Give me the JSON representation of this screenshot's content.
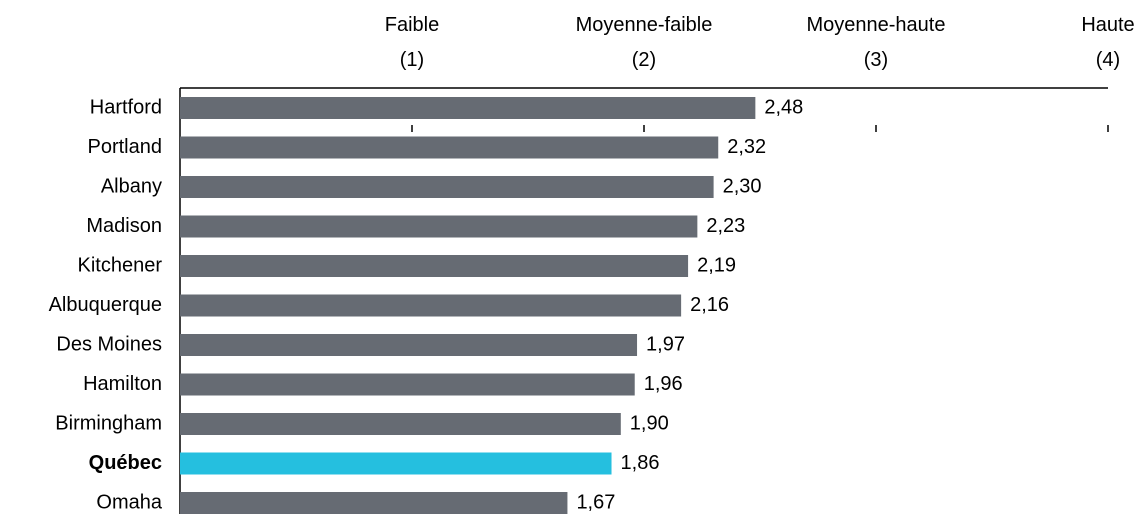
{
  "chart_data": {
    "type": "bar",
    "orientation": "horizontal",
    "categories": [
      "Hartford",
      "Portland",
      "Albany",
      "Madison",
      "Kitchener",
      "Albuquerque",
      "Des Moines",
      "Hamilton",
      "Birmingham",
      "Québec",
      "Omaha"
    ],
    "values": [
      2.48,
      2.32,
      2.3,
      2.23,
      2.19,
      2.16,
      1.97,
      1.96,
      1.9,
      1.86,
      1.67
    ],
    "value_labels": [
      "2,48",
      "2,32",
      "2,30",
      "2,23",
      "2,19",
      "2,16",
      "1,97",
      "1,96",
      "1,90",
      "1,86",
      "1,67"
    ],
    "color": "#666b73",
    "colors": [
      "#666b73",
      "#666b73",
      "#666b73",
      "#666b73",
      "#666b73",
      "#666b73",
      "#666b73",
      "#666b73",
      "#666b73",
      "#25bfdf",
      "#666b73"
    ],
    "xlim": [
      0,
      4
    ],
    "xticks": [
      {
        "value": 1,
        "label": "Faible\n(1)"
      },
      {
        "value": 2,
        "label": "Moyenne-faible\n(2)"
      },
      {
        "value": 3,
        "label": "Moyenne-haute\n(3)"
      },
      {
        "value": 4,
        "label": "Haute\n(4)"
      }
    ],
    "grid": false
  }
}
